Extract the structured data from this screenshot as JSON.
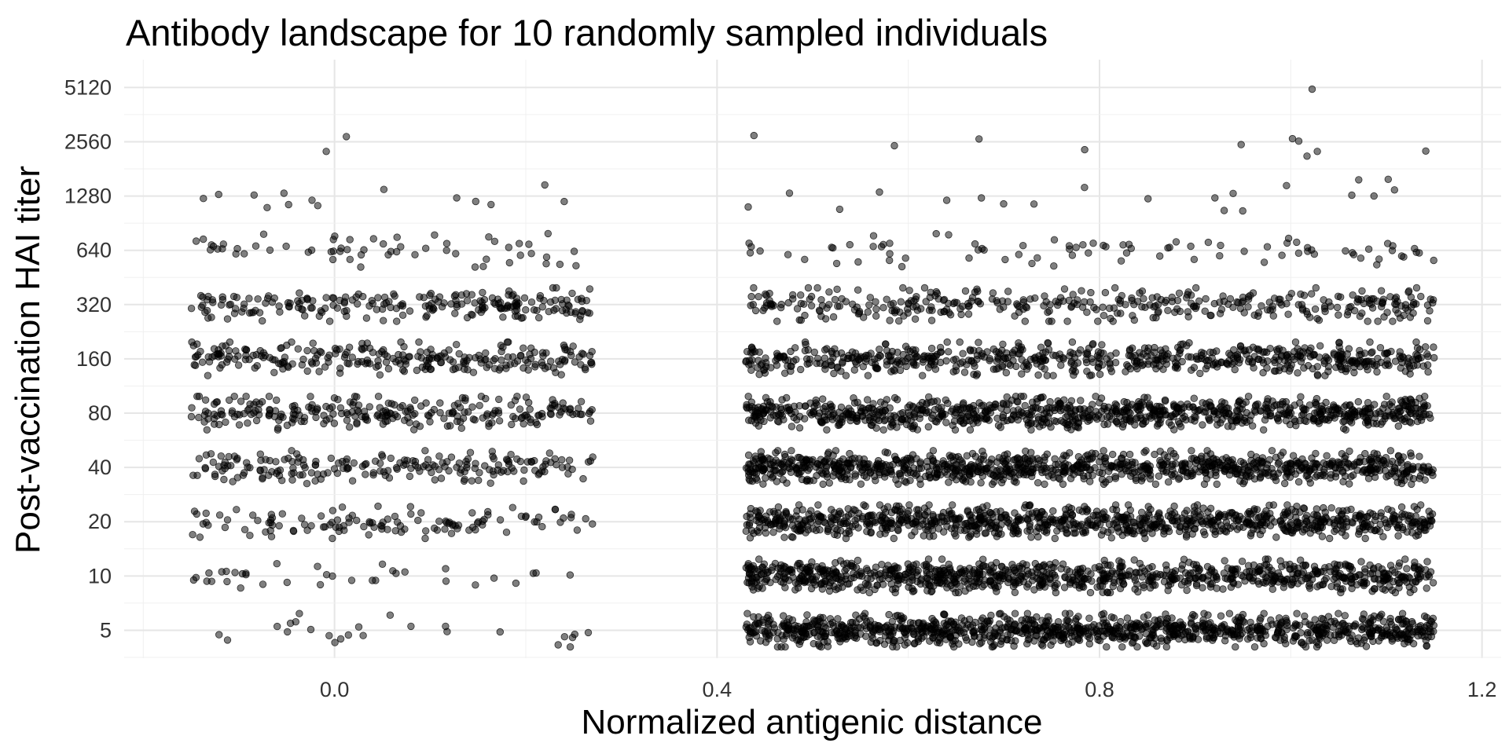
{
  "chart_data": {
    "type": "scatter",
    "title": "Antibody landscape for 10 randomly sampled individuals",
    "xlabel": "Normalized antigenic distance",
    "ylabel": "Post-vaccination HAI titer",
    "x_ticks": [
      0.0,
      0.4,
      0.8,
      1.2
    ],
    "x_tick_labels": [
      "0.0",
      "0.4",
      "0.8",
      "1.2"
    ],
    "xlim": [
      -0.22,
      1.22
    ],
    "y_scale": "log2",
    "y_ticks": [
      5,
      10,
      20,
      40,
      80,
      160,
      320,
      640,
      1280,
      2560,
      5120
    ],
    "y_tick_labels": [
      "5",
      "10",
      "20",
      "40",
      "80",
      "160",
      "320",
      "640",
      "1280",
      "2560",
      "5120"
    ],
    "ylim": [
      3.5,
      7300
    ],
    "grid": true,
    "marker_color": "#000000",
    "marker_opacity": 0.5,
    "x_clusters": [
      [
        -0.15,
        0.27
      ],
      [
        0.43,
        1.15
      ]
    ],
    "jitter": {
      "x": "uniform within cluster",
      "y_log2": 0.14
    },
    "series": [
      {
        "titer": 5,
        "n_left": 25,
        "n_right": 1100
      },
      {
        "titer": 10,
        "n_left": 35,
        "n_right": 950
      },
      {
        "titer": 20,
        "n_left": 120,
        "n_right": 950
      },
      {
        "titer": 40,
        "n_left": 200,
        "n_right": 1000
      },
      {
        "titer": 80,
        "n_left": 260,
        "n_right": 900
      },
      {
        "titer": 160,
        "n_left": 260,
        "n_right": 650
      },
      {
        "titer": 320,
        "n_left": 220,
        "n_right": 380
      },
      {
        "titer": 640,
        "n_left": 60,
        "n_right": 85
      },
      {
        "titer": 1280,
        "n_left": 14,
        "n_right": 20
      },
      {
        "titer": 2560,
        "n_left": 2,
        "n_right": 10
      },
      {
        "titer": 5120,
        "n_left": 0,
        "n_right": 1
      }
    ]
  }
}
